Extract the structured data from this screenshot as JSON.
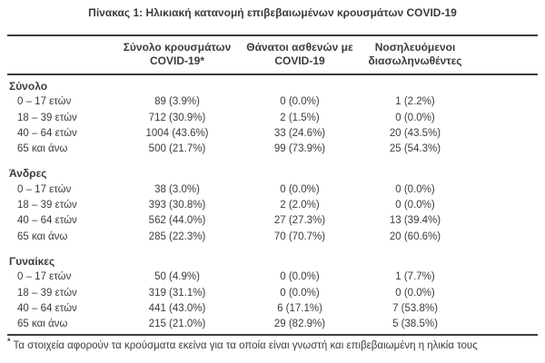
{
  "title": "Πίνακας 1: Ηλικιακή κατανομή επιβεβαιωμένων κρουσμάτων COVID-19",
  "colors": {
    "text": "#3c3c3c",
    "rule": "#3c3c3c",
    "background": "#ffffff"
  },
  "table": {
    "columns": [
      {
        "line1": "Σύνολο κρουσμάτων",
        "line2": "COVID-19*"
      },
      {
        "line1": "Θάνατοι ασθενών με",
        "line2": "COVID-19"
      },
      {
        "line1": "Νοσηλευόμενοι",
        "line2": "διασωληνωθέντες"
      }
    ],
    "sections": [
      {
        "label": "Σύνολο",
        "rows": [
          {
            "label": "0 – 17 ετών",
            "cases": "89 (3.9%)",
            "deaths": "0 (0.0%)",
            "intubated": "1 (2.2%)"
          },
          {
            "label": "18 – 39 ετών",
            "cases": "712 (30.9%)",
            "deaths": "2 (1.5%)",
            "intubated": "0 (0.0%)"
          },
          {
            "label": "40 – 64 ετών",
            "cases": "1004 (43.6%)",
            "deaths": "33 (24.6%)",
            "intubated": "20 (43.5%)"
          },
          {
            "label": "65 και άνω",
            "cases": "500 (21.7%)",
            "deaths": "99 (73.9%)",
            "intubated": "25 (54.3%)"
          }
        ]
      },
      {
        "label": "Άνδρες",
        "rows": [
          {
            "label": "0 – 17 ετών",
            "cases": "38 (3.0%)",
            "deaths": "0 (0.0%)",
            "intubated": "0 (0.0%)"
          },
          {
            "label": "18 – 39 ετών",
            "cases": "393 (30.8%)",
            "deaths": "2 (2.0%)",
            "intubated": "0 (0.0%)"
          },
          {
            "label": "40 – 64 ετών",
            "cases": "562 (44.0%)",
            "deaths": "27 (27.3%)",
            "intubated": "13 (39.4%)"
          },
          {
            "label": "65 και άνω",
            "cases": "285 (22.3%)",
            "deaths": "70 (70.7%)",
            "intubated": "20 (60.6%)"
          }
        ]
      },
      {
        "label": "Γυναίκες",
        "rows": [
          {
            "label": "0 – 17 ετών",
            "cases": "50 (4.9%)",
            "deaths": "0 (0.0%)",
            "intubated": "1 (7.7%)"
          },
          {
            "label": "18 – 39 ετών",
            "cases": "319 (31.1%)",
            "deaths": "0 (0.0%)",
            "intubated": "0 (0.0%)"
          },
          {
            "label": "40 – 64 ετών",
            "cases": "441 (43.0%)",
            "deaths": "6 (17.1%)",
            "intubated": "7 (53.8%)"
          },
          {
            "label": "65 και άνω",
            "cases": "215 (21.0%)",
            "deaths": "29 (82.9%)",
            "intubated": "5 (38.5%)"
          }
        ]
      }
    ]
  },
  "footnote": {
    "marker": "*",
    "text": "Τα στοιχεία αφορούν τα κρούσματα εκείνα για τα οποία είναι γνωστή και επιβεβαιωμένη η ηλικία τους"
  }
}
